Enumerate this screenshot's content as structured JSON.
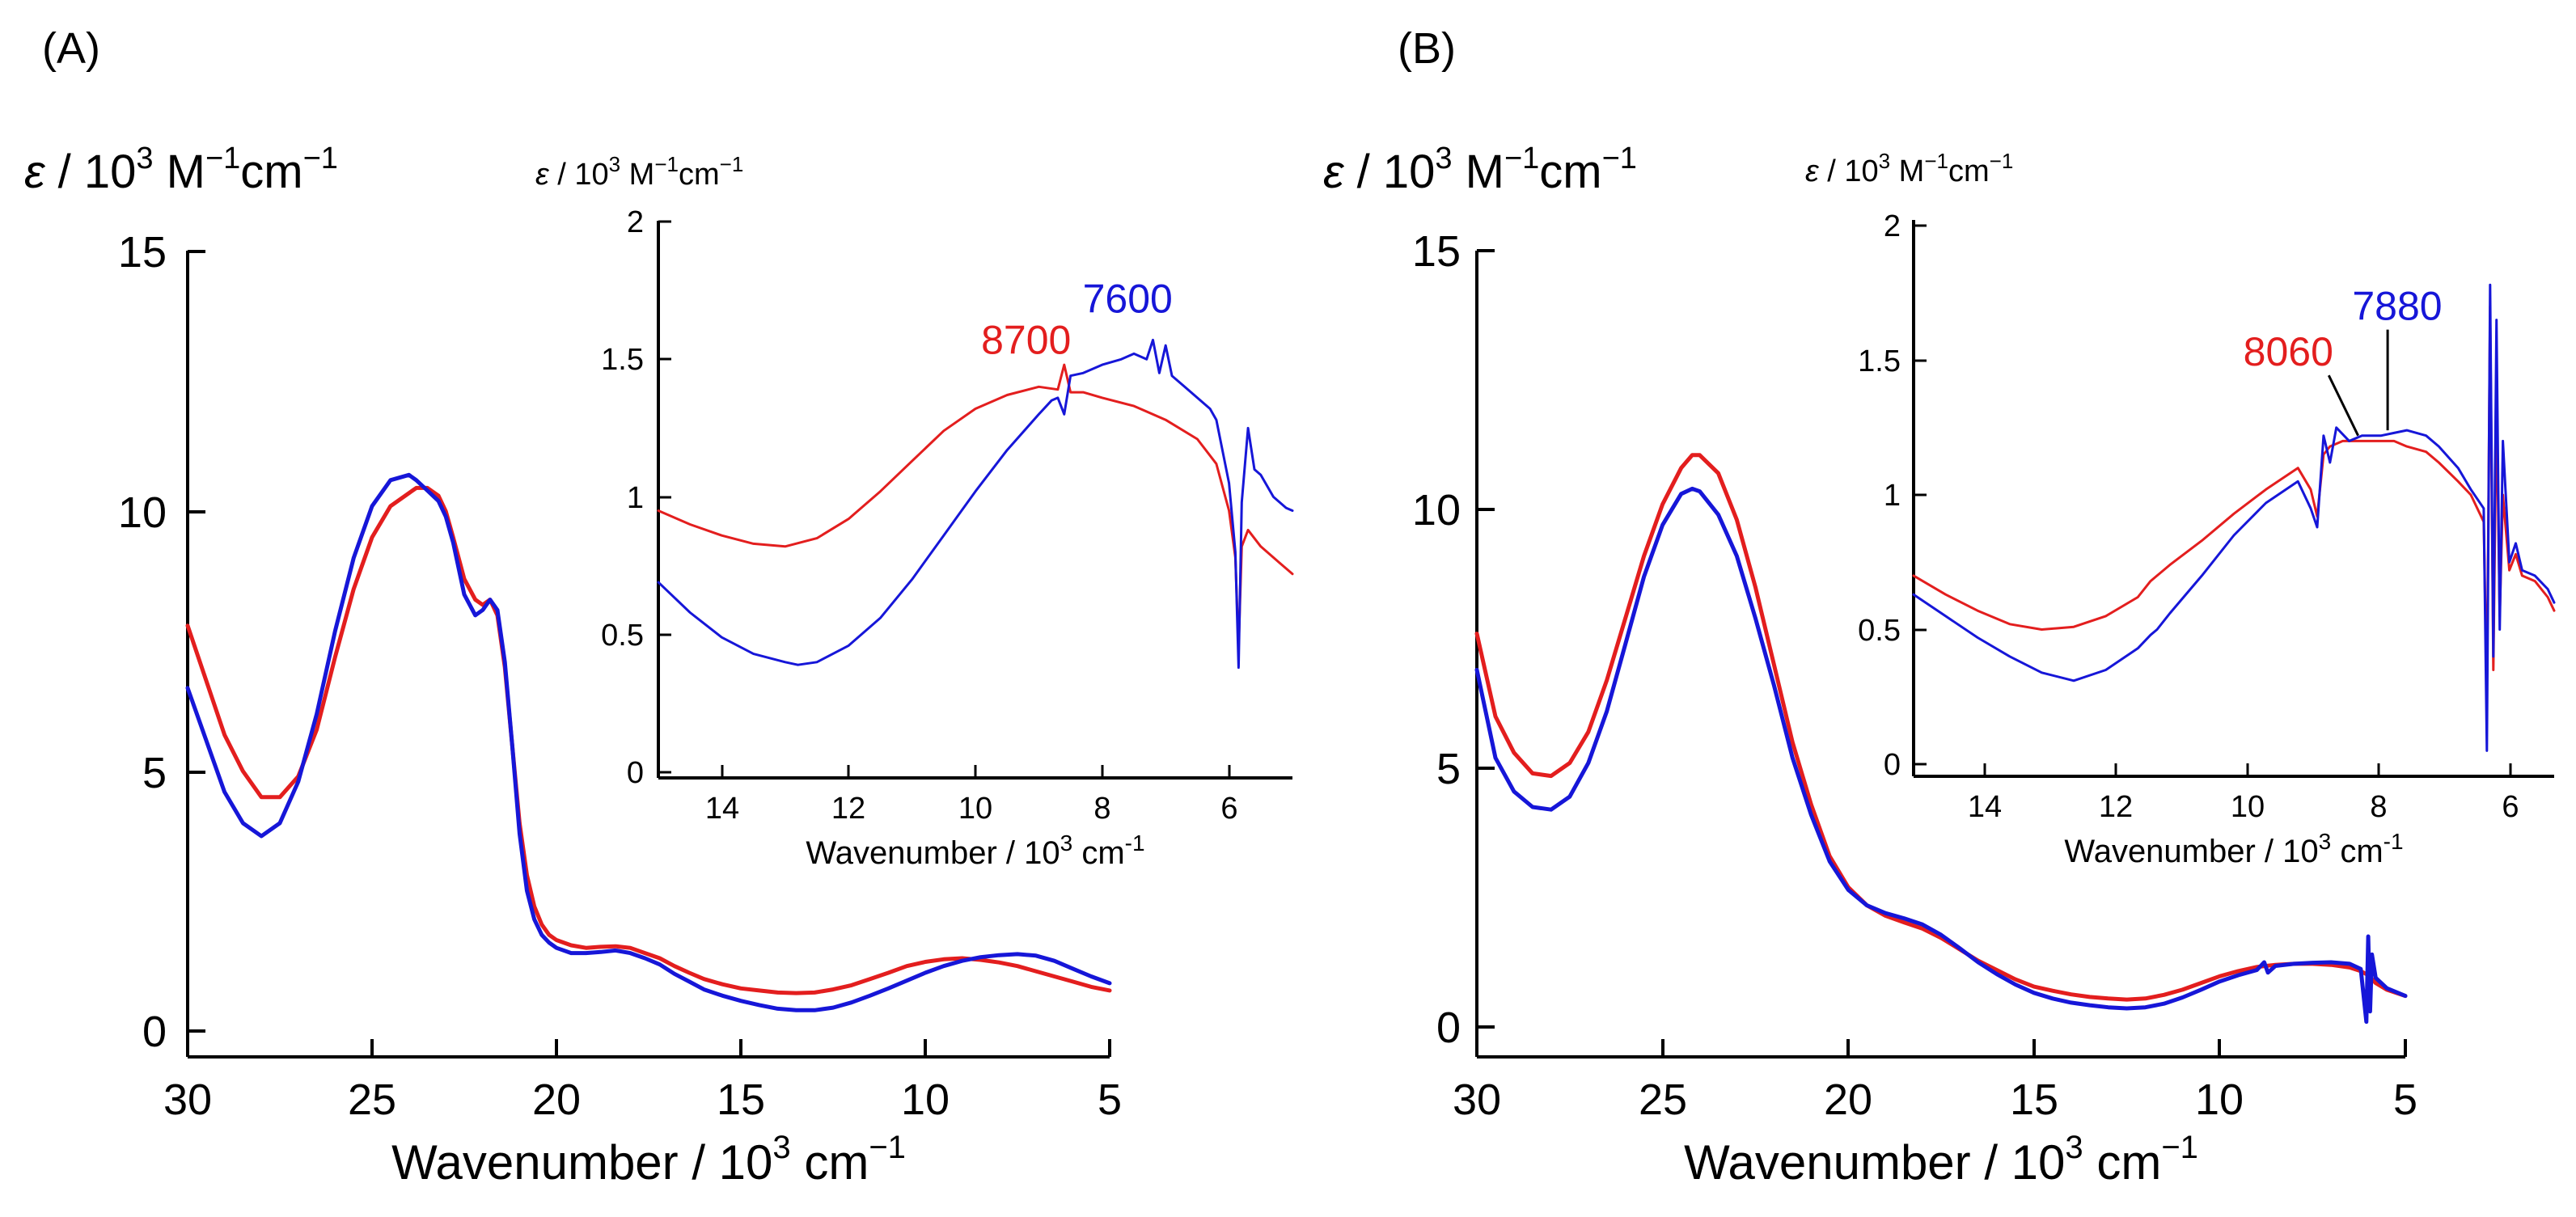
{
  "colors": {
    "red": "#e31e1e",
    "blue": "#1616d8",
    "black": "#000000"
  },
  "chart_data": [
    {
      "type": "line",
      "panel": "A",
      "panel_label": "(A)",
      "xlabel": {
        "main": "Wavenumber / 10",
        "sup": "3",
        "unit": " cm",
        "unit_sup": "−1"
      },
      "ylabel": {
        "eps": "ε",
        "main": " / 10",
        "sup": "3",
        "unit1": " M",
        "unit1_sup": "−1",
        "unit2": "cm",
        "unit2_sup": "−1"
      },
      "xlim": [
        30,
        5
      ],
      "ylim": [
        0,
        15
      ],
      "xticks": [
        "30",
        "25",
        "20",
        "15",
        "10",
        "5"
      ],
      "yticks": [
        "0",
        "5",
        "10",
        "15"
      ],
      "series": [
        {
          "name": "red",
          "color": "#e31e1e",
          "x": [
            30,
            29,
            28.5,
            28,
            27.5,
            27,
            26.5,
            26,
            25.5,
            25,
            24.5,
            24,
            23.8,
            23.5,
            23.2,
            23,
            22.8,
            22.5,
            22.2,
            22,
            21.8,
            21.6,
            21.4,
            21.2,
            21,
            20.8,
            20.6,
            20.4,
            20.2,
            20,
            19.6,
            19.2,
            18.8,
            18.4,
            18,
            17.6,
            17.2,
            16.8,
            16.4,
            16,
            15.5,
            15,
            14.5,
            14,
            13.5,
            13,
            12.5,
            12,
            11.5,
            11,
            10.5,
            10,
            9.5,
            9,
            8.5,
            8,
            7.5,
            7,
            6.5,
            6,
            5.5,
            5
          ],
          "y": [
            7.8,
            5.7,
            5.0,
            4.5,
            4.5,
            4.9,
            5.8,
            7.2,
            8.5,
            9.5,
            10.1,
            10.35,
            10.45,
            10.45,
            10.3,
            10.0,
            9.5,
            8.7,
            8.3,
            8.2,
            8.3,
            8.0,
            7.0,
            5.5,
            4.0,
            3.0,
            2.4,
            2.05,
            1.85,
            1.75,
            1.65,
            1.6,
            1.62,
            1.63,
            1.6,
            1.5,
            1.4,
            1.25,
            1.12,
            1.0,
            0.9,
            0.82,
            0.78,
            0.74,
            0.73,
            0.74,
            0.8,
            0.88,
            1.0,
            1.12,
            1.25,
            1.33,
            1.38,
            1.4,
            1.37,
            1.32,
            1.25,
            1.15,
            1.05,
            0.95,
            0.85,
            0.78
          ]
        },
        {
          "name": "blue",
          "color": "#1616d8",
          "x": [
            30,
            29,
            28.5,
            28,
            27.5,
            27,
            26.5,
            26,
            25.5,
            25,
            24.5,
            24,
            23.8,
            23.5,
            23.2,
            23,
            22.8,
            22.5,
            22.2,
            22,
            21.8,
            21.6,
            21.4,
            21.2,
            21,
            20.8,
            20.6,
            20.4,
            20.2,
            20,
            19.6,
            19.2,
            18.8,
            18.4,
            18,
            17.6,
            17.2,
            16.8,
            16.4,
            16,
            15.5,
            15,
            14.5,
            14,
            13.5,
            13,
            12.5,
            12,
            11.5,
            11,
            10.5,
            10,
            9.5,
            9,
            8.5,
            8,
            7.5,
            7,
            6.5,
            6,
            5.5,
            5
          ],
          "y": [
            6.6,
            4.6,
            4.0,
            3.75,
            4.0,
            4.8,
            6.1,
            7.7,
            9.1,
            10.1,
            10.6,
            10.7,
            10.6,
            10.4,
            10.2,
            9.9,
            9.4,
            8.4,
            8.0,
            8.1,
            8.3,
            8.1,
            7.1,
            5.5,
            3.8,
            2.7,
            2.15,
            1.85,
            1.7,
            1.6,
            1.5,
            1.5,
            1.52,
            1.55,
            1.5,
            1.4,
            1.28,
            1.1,
            0.95,
            0.8,
            0.68,
            0.58,
            0.5,
            0.43,
            0.4,
            0.4,
            0.45,
            0.55,
            0.68,
            0.82,
            0.97,
            1.12,
            1.25,
            1.35,
            1.42,
            1.46,
            1.48,
            1.45,
            1.35,
            1.2,
            1.05,
            0.92
          ]
        }
      ],
      "inset": {
        "type": "line",
        "xlabel": {
          "main": "Wavenumber / 10",
          "sup": "3",
          "unit": " cm",
          "unit_sup": "-1"
        },
        "ylabel": {
          "eps": "ε",
          "main": " / 10",
          "sup": "3",
          "unit1": " M",
          "unit1_sup": "−1",
          "unit2": "cm",
          "unit2_sup": "−1"
        },
        "xlim": [
          15,
          5
        ],
        "ylim": [
          0,
          2
        ],
        "xticks": [
          "14",
          "12",
          "10",
          "8",
          "6"
        ],
        "yticks": [
          "0",
          "0.5",
          "1",
          "1.5",
          "2"
        ],
        "annotations": [
          {
            "text": "8700",
            "color": "#e31e1e",
            "x": 9.2,
            "y": 1.52
          },
          {
            "text": "7600",
            "color": "#1616d8",
            "x": 7.6,
            "y": 1.67
          }
        ],
        "series": [
          {
            "name": "red",
            "color": "#e31e1e",
            "x": [
              15,
              14.5,
              14,
              13.5,
              13,
              12.5,
              12,
              11.5,
              11,
              10.5,
              10,
              9.5,
              9,
              8.7,
              8.6,
              8.5,
              8.3,
              8,
              7.5,
              7,
              6.5,
              6.2,
              6.0,
              5.9,
              5.85,
              5.8,
              5.7,
              5.5,
              5.2,
              5
            ],
            "y": [
              0.95,
              0.9,
              0.86,
              0.83,
              0.82,
              0.85,
              0.92,
              1.02,
              1.13,
              1.24,
              1.32,
              1.37,
              1.4,
              1.39,
              1.48,
              1.38,
              1.38,
              1.36,
              1.33,
              1.28,
              1.21,
              1.12,
              0.95,
              0.78,
              0.45,
              0.82,
              0.88,
              0.82,
              0.76,
              0.72
            ]
          },
          {
            "name": "blue",
            "color": "#1616d8",
            "x": [
              15,
              14.5,
              14,
              13.5,
              13,
              12.8,
              12.5,
              12,
              11.5,
              11,
              10.5,
              10,
              9.5,
              9,
              8.8,
              8.7,
              8.6,
              8.5,
              8.3,
              8,
              7.7,
              7.5,
              7.3,
              7.2,
              7.1,
              7.0,
              6.9,
              6.7,
              6.5,
              6.3,
              6.2,
              6.0,
              5.9,
              5.85,
              5.8,
              5.7,
              5.6,
              5.5,
              5.3,
              5.1,
              5
            ],
            "y": [
              0.69,
              0.58,
              0.49,
              0.43,
              0.4,
              0.39,
              0.4,
              0.46,
              0.56,
              0.7,
              0.86,
              1.02,
              1.17,
              1.3,
              1.35,
              1.36,
              1.3,
              1.44,
              1.45,
              1.48,
              1.5,
              1.52,
              1.5,
              1.57,
              1.45,
              1.55,
              1.44,
              1.4,
              1.36,
              1.32,
              1.28,
              1.05,
              0.8,
              0.38,
              0.98,
              1.25,
              1.1,
              1.08,
              1.0,
              0.96,
              0.95
            ]
          }
        ]
      }
    },
    {
      "type": "line",
      "panel": "B",
      "panel_label": "(B)",
      "xlabel": {
        "main": "Wavenumber / 10",
        "sup": "3",
        "unit": " cm",
        "unit_sup": "−1"
      },
      "ylabel": {
        "eps": "ε",
        "main": " / 10",
        "sup": "3",
        "unit1": " M",
        "unit1_sup": "−1",
        "unit2": "cm",
        "unit2_sup": "−1"
      },
      "xlim": [
        30,
        5
      ],
      "ylim": [
        0,
        15
      ],
      "xticks": [
        "30",
        "25",
        "20",
        "15",
        "10",
        "5"
      ],
      "yticks": [
        "0",
        "5",
        "10",
        "15"
      ],
      "series": [
        {
          "name": "red",
          "color": "#e31e1e",
          "x": [
            30,
            29.5,
            29,
            28.5,
            28,
            27.5,
            27,
            26.5,
            26,
            25.5,
            25,
            24.5,
            24.2,
            24,
            23.5,
            23,
            22.5,
            22,
            21.5,
            21,
            20.5,
            20,
            19.5,
            19,
            18.5,
            18,
            17.5,
            17,
            16.5,
            16,
            15.5,
            15,
            14.5,
            14,
            13.5,
            13,
            12.5,
            12,
            11.5,
            11,
            10.5,
            10,
            9.5,
            9,
            8.5,
            8,
            7.5,
            7,
            6.5,
            6.2,
            6,
            5.8,
            5.5,
            5
          ],
          "y": [
            7.6,
            6.0,
            5.3,
            4.9,
            4.85,
            5.1,
            5.7,
            6.7,
            7.9,
            9.1,
            10.1,
            10.8,
            11.05,
            11.05,
            10.7,
            9.8,
            8.5,
            7.0,
            5.5,
            4.3,
            3.3,
            2.7,
            2.35,
            2.15,
            2.02,
            1.9,
            1.72,
            1.5,
            1.28,
            1.1,
            0.92,
            0.78,
            0.7,
            0.63,
            0.58,
            0.55,
            0.53,
            0.55,
            0.62,
            0.72,
            0.85,
            0.98,
            1.08,
            1.16,
            1.2,
            1.22,
            1.22,
            1.2,
            1.15,
            1.08,
            1.0,
            0.85,
            0.72,
            0.6
          ]
        },
        {
          "name": "blue",
          "color": "#1616d8",
          "x": [
            30,
            29.5,
            29,
            28.5,
            28,
            27.5,
            27,
            26.5,
            26,
            25.5,
            25,
            24.5,
            24.2,
            24,
            23.5,
            23,
            22.5,
            22,
            21.5,
            21,
            20.5,
            20,
            19.5,
            19,
            18.5,
            18,
            17.5,
            17,
            16.5,
            16,
            15.5,
            15,
            14.5,
            14,
            13.5,
            13,
            12.5,
            12,
            11.5,
            11,
            10.5,
            10,
            9.5,
            9,
            8.8,
            8.7,
            8.5,
            8,
            7.5,
            7,
            6.5,
            6.2,
            6.05,
            6.0,
            5.95,
            5.9,
            5.8,
            5.5,
            5
          ],
          "y": [
            6.9,
            5.2,
            4.55,
            4.25,
            4.2,
            4.45,
            5.1,
            6.1,
            7.4,
            8.7,
            9.7,
            10.3,
            10.4,
            10.35,
            9.9,
            9.1,
            7.9,
            6.6,
            5.2,
            4.1,
            3.2,
            2.65,
            2.35,
            2.2,
            2.1,
            1.98,
            1.78,
            1.52,
            1.25,
            1.02,
            0.82,
            0.66,
            0.55,
            0.47,
            0.42,
            0.38,
            0.36,
            0.38,
            0.45,
            0.57,
            0.72,
            0.88,
            1.0,
            1.1,
            1.25,
            1.05,
            1.18,
            1.22,
            1.24,
            1.25,
            1.22,
            1.12,
            0.1,
            1.75,
            0.3,
            1.4,
            0.95,
            0.75,
            0.6
          ]
        }
      ],
      "inset": {
        "type": "line",
        "xlabel": {
          "main": "Wavenumber / 10",
          "sup": "3",
          "unit": " cm",
          "unit_sup": "-1"
        },
        "ylabel": {
          "eps": "ε",
          "main": " / 10",
          "sup": "3",
          "unit1": " M",
          "unit1_sup": "−1",
          "unit2": "cm",
          "unit2_sup": "−1"
        },
        "xlim": [
          15,
          5
        ],
        "ylim": [
          0,
          2
        ],
        "xticks": [
          "14",
          "12",
          "10",
          "8",
          "6"
        ],
        "yticks": [
          "0",
          "0.5",
          "1",
          "1.5",
          "2"
        ],
        "annotations": [
          {
            "text": "8060",
            "color": "#e31e1e",
            "x": 9.15,
            "y": 1.48,
            "pointer_to": [
              8.06,
              1.22
            ]
          },
          {
            "text": "7880",
            "color": "#1616d8",
            "x": 7.45,
            "y": 1.65,
            "pointer_to": [
              7.6,
              1.24
            ]
          }
        ],
        "series": [
          {
            "name": "red",
            "color": "#e31e1e",
            "x": [
              15,
              14.5,
              14,
              13.5,
              13,
              12.5,
              12,
              11.5,
              11.3,
              11.2,
              11,
              10.5,
              10,
              9.5,
              9,
              8.8,
              8.7,
              8.6,
              8.5,
              8.3,
              8,
              7.7,
              7.5,
              7.3,
              7,
              6.8,
              6.5,
              6.3,
              6.1,
              6.05,
              6.0,
              5.95,
              5.9,
              5.85,
              5.8,
              5.7,
              5.6,
              5.5,
              5.3,
              5.1,
              5
            ],
            "y": [
              0.7,
              0.63,
              0.57,
              0.52,
              0.5,
              0.51,
              0.55,
              0.62,
              0.68,
              0.7,
              0.74,
              0.83,
              0.93,
              1.02,
              1.1,
              1.02,
              0.92,
              1.15,
              1.18,
              1.2,
              1.2,
              1.2,
              1.2,
              1.18,
              1.16,
              1.12,
              1.05,
              1.0,
              0.9,
              0.25,
              1.7,
              0.35,
              1.35,
              0.55,
              1.0,
              0.72,
              0.78,
              0.7,
              0.68,
              0.62,
              0.57
            ]
          },
          {
            "name": "blue",
            "color": "#1616d8",
            "x": [
              15,
              14.5,
              14,
              13.5,
              13,
              12.5,
              12,
              11.5,
              11.3,
              11.2,
              11,
              10.5,
              10,
              9.5,
              9,
              8.8,
              8.7,
              8.6,
              8.5,
              8.4,
              8.2,
              8,
              7.7,
              7.5,
              7.3,
              7,
              6.8,
              6.5,
              6.3,
              6.1,
              6.05,
              6.0,
              5.95,
              5.9,
              5.85,
              5.8,
              5.7,
              5.6,
              5.5,
              5.3,
              5.1,
              5
            ],
            "y": [
              0.63,
              0.55,
              0.47,
              0.4,
              0.34,
              0.31,
              0.35,
              0.43,
              0.48,
              0.5,
              0.56,
              0.7,
              0.85,
              0.97,
              1.05,
              0.95,
              0.88,
              1.22,
              1.12,
              1.25,
              1.2,
              1.22,
              1.22,
              1.23,
              1.24,
              1.22,
              1.18,
              1.1,
              1.02,
              0.95,
              0.05,
              1.78,
              0.4,
              1.65,
              0.5,
              1.2,
              0.75,
              0.82,
              0.72,
              0.7,
              0.65,
              0.6
            ]
          }
        ]
      }
    }
  ]
}
